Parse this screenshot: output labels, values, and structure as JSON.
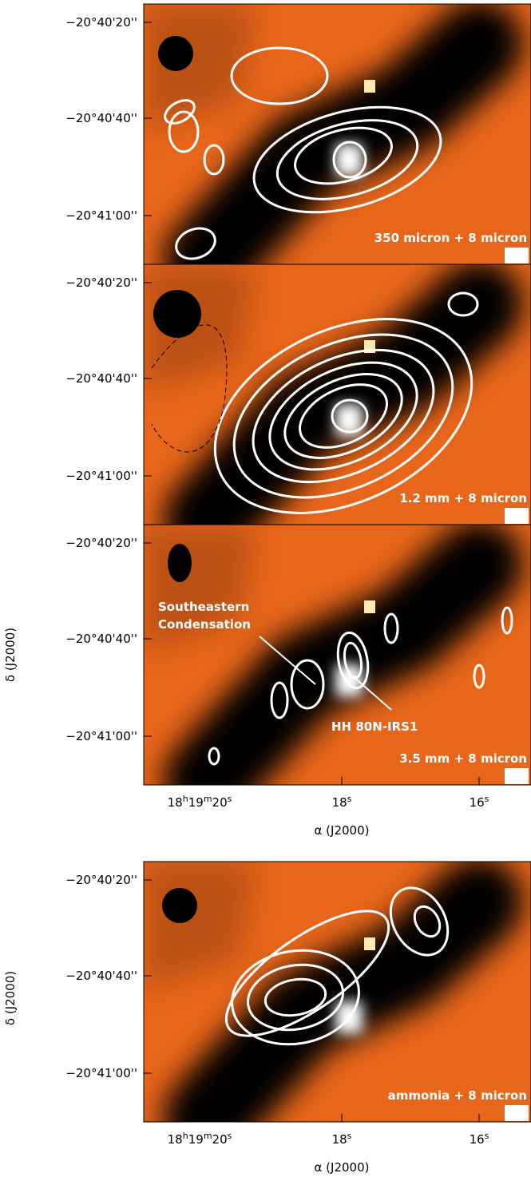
{
  "panels": [
    {
      "label": "350 micron + 8 micron",
      "y_tick_labels": [
        "−20°40'20''",
        "−20°40'40''",
        "−20°41'00''"
      ]
    },
    {
      "label": "1.2 mm + 8 micron",
      "y_tick_labels": [
        "−20°40'20''",
        "−20°40'40''",
        "−20°41'00''"
      ]
    },
    {
      "label": "3.5 mm + 8 micron",
      "y_tick_labels": [
        "−20°40'20''",
        "−20°40'40''",
        "−20°41'00''"
      ],
      "annotations": [
        {
          "lines": [
            "Southeastern",
            "Condensation"
          ]
        },
        {
          "lines": [
            "HH 80N-IRS1"
          ]
        }
      ]
    },
    {
      "label": "ammonia + 8 micron",
      "y_tick_labels": [
        "−20°40'20''",
        "−20°40'40''",
        "−20°41'00''"
      ]
    }
  ],
  "x_tick_labels": [
    {
      "parts": [
        "18",
        "h",
        "19",
        "m",
        "20",
        "s"
      ]
    },
    {
      "parts": [
        "18",
        "s"
      ]
    },
    {
      "parts": [
        "16",
        "s"
      ]
    }
  ],
  "x_axis_label": "α (J2000)",
  "y_axis_label": "δ (J2000)"
}
